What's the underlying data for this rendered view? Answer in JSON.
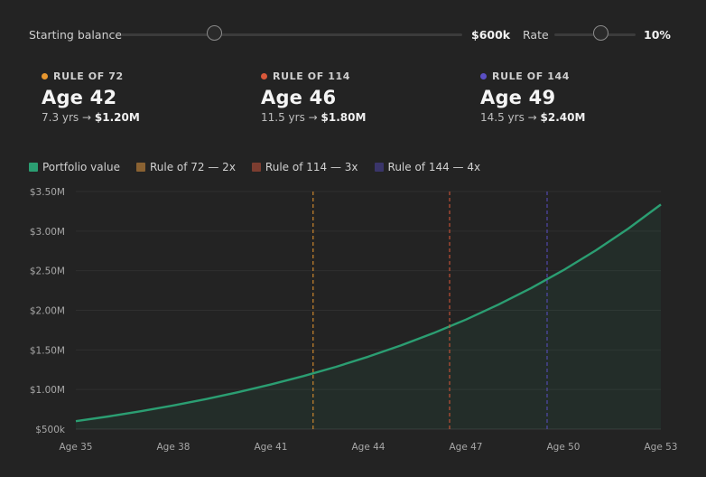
{
  "controls": {
    "balance_label": "Starting balance",
    "balance_value": "$600k",
    "rate_label": "Rate",
    "rate_value": "10%"
  },
  "cards": [
    {
      "title": "RULE OF 72",
      "age": "Age 42",
      "years": "7.3 yrs →",
      "amount": "$1.20M",
      "color": "#e8972f"
    },
    {
      "title": "RULE OF 114",
      "age": "Age 46",
      "years": "11.5 yrs →",
      "amount": "$1.80M",
      "color": "#d9583a"
    },
    {
      "title": "RULE OF 144",
      "age": "Age 49",
      "years": "14.5 yrs →",
      "amount": "$2.40M",
      "color": "#5a4fc4"
    }
  ],
  "legend": [
    {
      "label": "Portfolio value",
      "color": "#2b9e72"
    },
    {
      "label": "Rule of 72 — 2x",
      "color": "#8a6232"
    },
    {
      "label": "Rule of 114 — 3x",
      "color": "#7c3d30"
    },
    {
      "label": "Rule of 144 — 4x",
      "color": "#3a356a"
    }
  ],
  "chart_data": {
    "type": "area",
    "x_tick_labels": [
      "Age 35",
      "Age 38",
      "Age 41",
      "Age 44",
      "Age 47",
      "Age 50",
      "Age 53"
    ],
    "y_tick_labels": [
      "$500k",
      "$1.00M",
      "$1.50M",
      "$2.00M",
      "$2.50M",
      "$3.00M",
      "$3.50M"
    ],
    "xlim": [
      35,
      53
    ],
    "ylim": [
      500000,
      3500000
    ],
    "series": [
      {
        "name": "Portfolio value",
        "color": "#2b9e72",
        "x": [
          35,
          36,
          37,
          38,
          39,
          40,
          41,
          42,
          43,
          44,
          45,
          46,
          47,
          48,
          49,
          50,
          51,
          52,
          53
        ],
        "values": [
          600000,
          660000,
          726000,
          798600,
          878460,
          966306,
          1062937,
          1169230,
          1286153,
          1414769,
          1556245,
          1711870,
          1883057,
          2071362,
          2278499,
          2506348,
          2756983,
          3032682,
          3335950
        ]
      }
    ],
    "markers": [
      {
        "name": "Rule of 72 — 2x",
        "x": 42.3,
        "color": "#e8972f"
      },
      {
        "name": "Rule of 114 — 3x",
        "x": 46.5,
        "color": "#d9583a"
      },
      {
        "name": "Rule of 144 — 4x",
        "x": 49.5,
        "color": "#5a4fc4"
      }
    ],
    "grid": true
  }
}
